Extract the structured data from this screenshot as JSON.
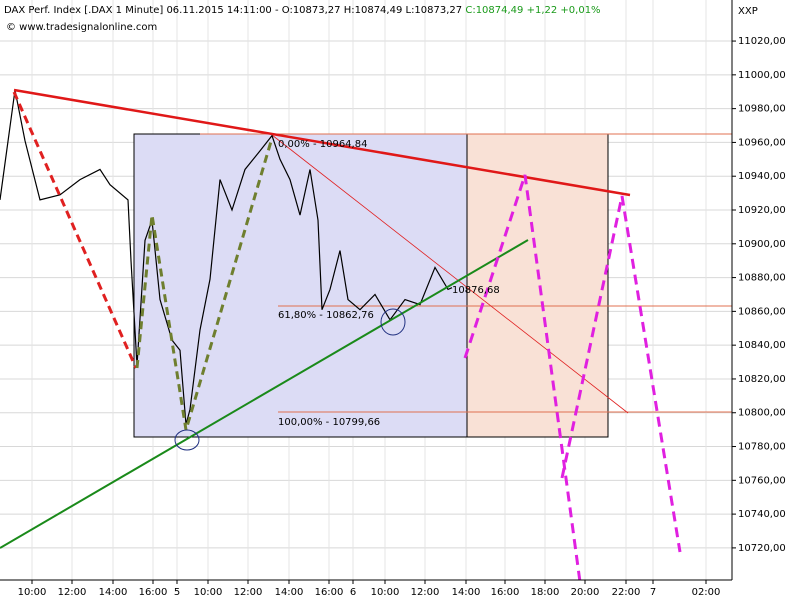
{
  "chart_data": {
    "type": "line",
    "title": "DAX Perf. Index [.DAX  1 Minute] 06.11.2015 14:11:00 - O:10873,27 H:10874,49 L:10873,27",
    "title_change": "C:10874,49 +1,22 +0,01%",
    "source": "© www.tradesignalonline.com",
    "y_axis_label": "XXP",
    "grid": true,
    "series": [
      {
        "name": ".DAX",
        "color": "#000000",
        "x": [
          0,
          0.75,
          1.25,
          2,
          3,
          4,
          5,
          5.5,
          6.4,
          6.55,
          6.85,
          7.25,
          7.6,
          8,
          8.6,
          9,
          9.3,
          9.5,
          10,
          10.5,
          11,
          11.6,
          12.25,
          13,
          13.6,
          14,
          14.5,
          15,
          15.5,
          15.9,
          16.1,
          16.5,
          17,
          17.4,
          18,
          18.75,
          19.5,
          20.25,
          21,
          21.75,
          22.4,
          22.6
        ],
        "values": [
          10926,
          10991,
          10961,
          10926,
          10929,
          10938,
          10944,
          10935,
          10926,
          10890,
          10828,
          10902,
          10914,
          10867,
          10843,
          10837,
          10793,
          10802,
          10849,
          10879,
          10938,
          10920,
          10944,
          10955,
          10964,
          10950,
          10938,
          10917,
          10944,
          10914,
          10861,
          10873,
          10896,
          10867,
          10861,
          10870,
          10855,
          10867,
          10864,
          10886,
          10873,
          10874
        ]
      }
    ],
    "xlim": [
      0,
      36.6
    ],
    "xticks": [
      {
        "value": 1.6,
        "label": "10:00"
      },
      {
        "value": 3.6,
        "label": "12:00"
      },
      {
        "value": 5.65,
        "label": "14:00"
      },
      {
        "value": 7.65,
        "label": "16:00"
      },
      {
        "value": 8.85,
        "label": "5"
      },
      {
        "value": 10.4,
        "label": "10:00"
      },
      {
        "value": 12.4,
        "label": "12:00"
      },
      {
        "value": 14.45,
        "label": "14:00"
      },
      {
        "value": 16.45,
        "label": "16:00"
      },
      {
        "value": 17.65,
        "label": "6"
      },
      {
        "value": 19.25,
        "label": "10:00"
      },
      {
        "value": 21.25,
        "label": "12:00"
      },
      {
        "value": 23.3,
        "label": "14:00"
      },
      {
        "value": 25.25,
        "label": "16:00"
      },
      {
        "value": 27.25,
        "label": "18:00"
      },
      {
        "value": 29.25,
        "label": "20:00"
      },
      {
        "value": 31.3,
        "label": "22:00"
      },
      {
        "value": 32.65,
        "label": "7"
      },
      {
        "value": 35.3,
        "label": "02:00"
      }
    ],
    "ylim": [
      10701,
      11044.3
    ],
    "yticks": [
      {
        "value": 10720,
        "label": "10720,00"
      },
      {
        "value": 10740,
        "label": "10740,00"
      },
      {
        "value": 10760,
        "label": "10760,00"
      },
      {
        "value": 10780,
        "label": "10780,00"
      },
      {
        "value": 10800,
        "label": "10800,00"
      },
      {
        "value": 10820,
        "label": "10820,00"
      },
      {
        "value": 10840,
        "label": "10840,00"
      },
      {
        "value": 10860,
        "label": "10860,00"
      },
      {
        "value": 10880,
        "label": "10880,00"
      },
      {
        "value": 10900,
        "label": "10900,00"
      },
      {
        "value": 10920,
        "label": "10920,00"
      },
      {
        "value": 10940,
        "label": "10940,00"
      },
      {
        "value": 10960,
        "label": "10960,00"
      },
      {
        "value": 10980,
        "label": "10980,00"
      },
      {
        "value": 11000,
        "label": "11000,00"
      },
      {
        "value": 11020,
        "label": "11020,00"
      }
    ],
    "annotations": [
      "0,00% - 10964,84",
      "61,80% - 10862,76",
      "100,00% - 10799,66",
      "10876,68"
    ]
  }
}
